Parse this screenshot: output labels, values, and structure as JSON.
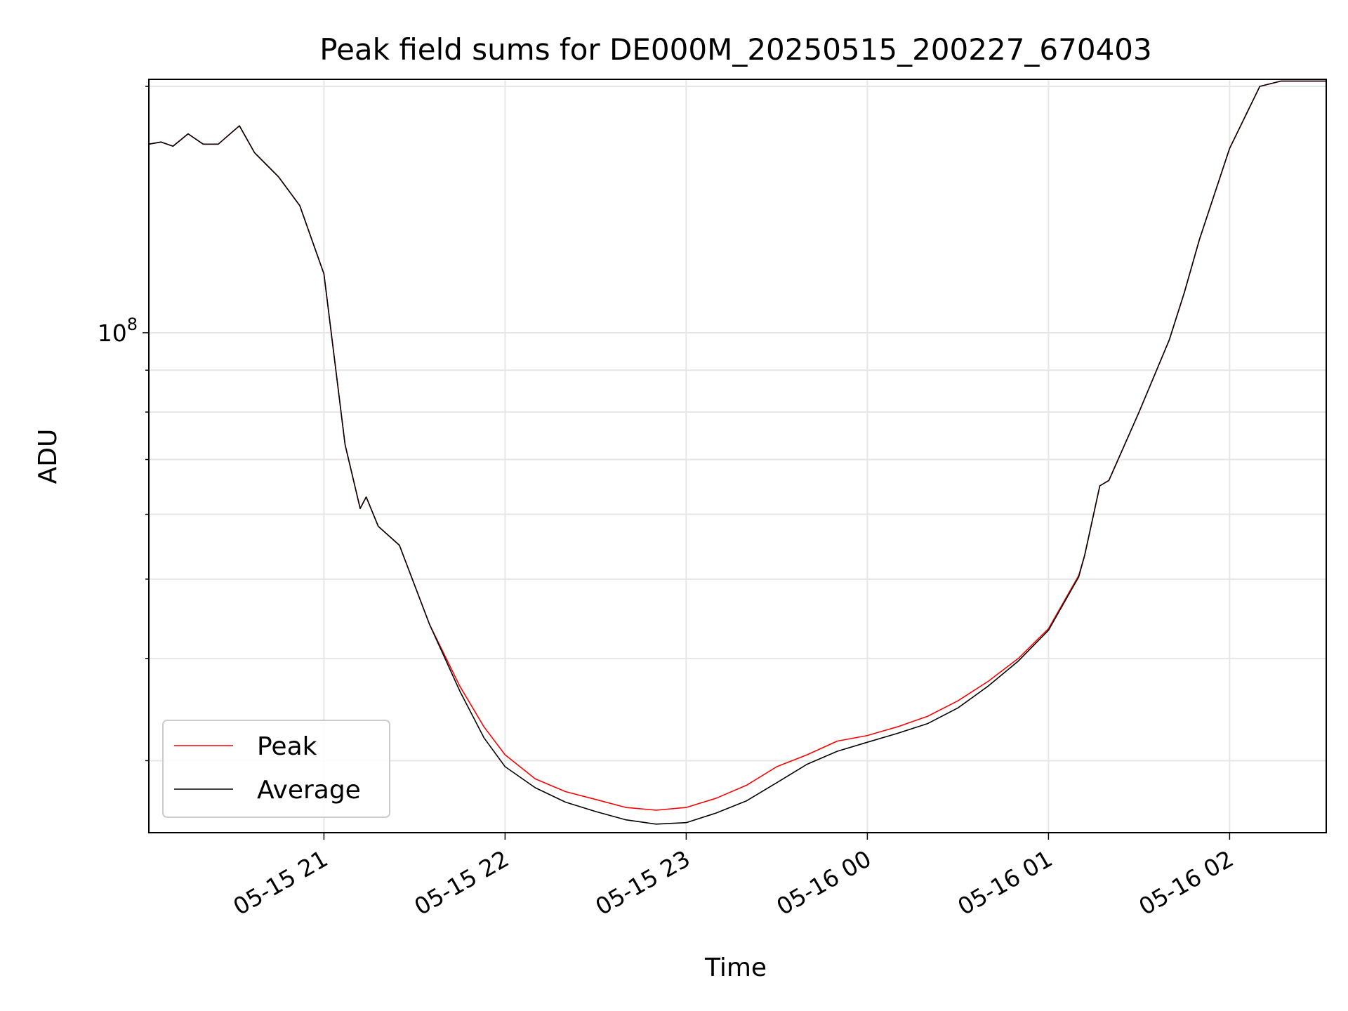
{
  "chart_data": {
    "type": "line",
    "title": "Peak field sums for DE000M_20250515_200227_670403",
    "xlabel": "Time",
    "ylabel": "ADU",
    "x_range": [
      "2025-05-15 20:02",
      "2025-05-16 02:32"
    ],
    "ylim": [
      24500000,
      204000000
    ],
    "y_scale": "log",
    "y_ticks": [
      {
        "value": 100000000,
        "base": "10",
        "exponent": "8"
      }
    ],
    "x_ticks": [
      {
        "value": "2025-05-15 21:00",
        "label": "05-15 21"
      },
      {
        "value": "2025-05-15 22:00",
        "label": "05-15 22"
      },
      {
        "value": "2025-05-15 23:00",
        "label": "05-15 23"
      },
      {
        "value": "2025-05-16 00:00",
        "label": "05-16 00"
      },
      {
        "value": "2025-05-16 01:00",
        "label": "05-16 01"
      },
      {
        "value": "2025-05-16 02:00",
        "label": "05-16 02"
      }
    ],
    "grid": true,
    "legend_position": "lower-left",
    "series": [
      {
        "name": "Peak",
        "color": "#ff0000",
        "x": [
          "2025-05-15 20:02",
          "2025-05-15 20:06",
          "2025-05-15 20:10",
          "2025-05-15 20:15",
          "2025-05-15 20:20",
          "2025-05-15 20:25",
          "2025-05-15 20:32",
          "2025-05-15 20:37",
          "2025-05-15 20:45",
          "2025-05-15 20:52",
          "2025-05-15 21:00",
          "2025-05-15 21:07",
          "2025-05-15 21:12",
          "2025-05-15 21:14",
          "2025-05-15 21:18",
          "2025-05-15 21:25",
          "2025-05-15 21:35",
          "2025-05-15 21:45",
          "2025-05-15 21:53",
          "2025-05-15 22:00",
          "2025-05-15 22:10",
          "2025-05-15 22:20",
          "2025-05-15 22:30",
          "2025-05-15 22:40",
          "2025-05-15 22:50",
          "2025-05-15 23:00",
          "2025-05-15 23:10",
          "2025-05-15 23:20",
          "2025-05-15 23:30",
          "2025-05-15 23:40",
          "2025-05-15 23:50",
          "2025-05-16 00:00",
          "2025-05-16 00:10",
          "2025-05-16 00:20",
          "2025-05-16 00:30",
          "2025-05-16 00:40",
          "2025-05-16 00:50",
          "2025-05-16 01:00",
          "2025-05-16 01:10",
          "2025-05-16 01:12",
          "2025-05-16 01:17",
          "2025-05-16 01:20",
          "2025-05-16 01:30",
          "2025-05-16 01:40",
          "2025-05-16 01:45",
          "2025-05-16 01:50",
          "2025-05-16 02:00",
          "2025-05-16 02:10",
          "2025-05-16 02:17",
          "2025-05-16 02:32"
        ],
        "values": [
          170000000,
          171000000,
          169000000,
          175000000,
          170000000,
          170000000,
          179000000,
          166000000,
          155000000,
          143000000,
          118000000,
          73000000,
          61000000,
          63000000,
          58000000,
          55000000,
          44000000,
          37000000,
          33000000,
          30500000,
          28500000,
          27500000,
          26900000,
          26300000,
          26100000,
          26300000,
          27000000,
          28000000,
          29500000,
          30500000,
          31700000,
          32200000,
          33000000,
          34000000,
          35500000,
          37500000,
          40000000,
          43500000,
          50500000,
          53500000,
          65000000,
          66000000,
          80000000,
          98000000,
          112000000,
          130000000,
          168000000,
          200000000,
          203000000,
          203000000
        ]
      },
      {
        "name": "Average",
        "color": "#000000",
        "x": [
          "2025-05-15 20:02",
          "2025-05-15 20:06",
          "2025-05-15 20:10",
          "2025-05-15 20:15",
          "2025-05-15 20:20",
          "2025-05-15 20:25",
          "2025-05-15 20:32",
          "2025-05-15 20:37",
          "2025-05-15 20:45",
          "2025-05-15 20:52",
          "2025-05-15 21:00",
          "2025-05-15 21:07",
          "2025-05-15 21:12",
          "2025-05-15 21:14",
          "2025-05-15 21:18",
          "2025-05-15 21:25",
          "2025-05-15 21:35",
          "2025-05-15 21:45",
          "2025-05-15 21:53",
          "2025-05-15 22:00",
          "2025-05-15 22:10",
          "2025-05-15 22:20",
          "2025-05-15 22:30",
          "2025-05-15 22:40",
          "2025-05-15 22:50",
          "2025-05-15 23:00",
          "2025-05-15 23:10",
          "2025-05-15 23:20",
          "2025-05-15 23:30",
          "2025-05-15 23:40",
          "2025-05-15 23:50",
          "2025-05-16 00:00",
          "2025-05-16 00:10",
          "2025-05-16 00:20",
          "2025-05-16 00:30",
          "2025-05-16 00:40",
          "2025-05-16 00:50",
          "2025-05-16 01:00",
          "2025-05-16 01:10",
          "2025-05-16 01:12",
          "2025-05-16 01:17",
          "2025-05-16 01:20",
          "2025-05-16 01:30",
          "2025-05-16 01:40",
          "2025-05-16 01:45",
          "2025-05-16 01:50",
          "2025-05-16 02:00",
          "2025-05-16 02:10",
          "2025-05-16 02:17",
          "2025-05-16 02:32"
        ],
        "values": [
          170000000,
          171000000,
          169000000,
          175000000,
          170000000,
          170000000,
          179000000,
          166000000,
          155000000,
          143000000,
          118000000,
          73000000,
          61000000,
          63000000,
          58000000,
          55000000,
          44000000,
          36500000,
          32000000,
          29500000,
          27800000,
          26700000,
          26000000,
          25400000,
          25100000,
          25200000,
          25900000,
          26800000,
          28200000,
          29700000,
          30800000,
          31600000,
          32400000,
          33300000,
          34800000,
          37000000,
          39700000,
          43300000,
          50300000,
          53500000,
          65000000,
          66000000,
          80000000,
          98000000,
          112000000,
          130000000,
          168000000,
          200000000,
          203000000,
          203000000
        ]
      }
    ]
  }
}
